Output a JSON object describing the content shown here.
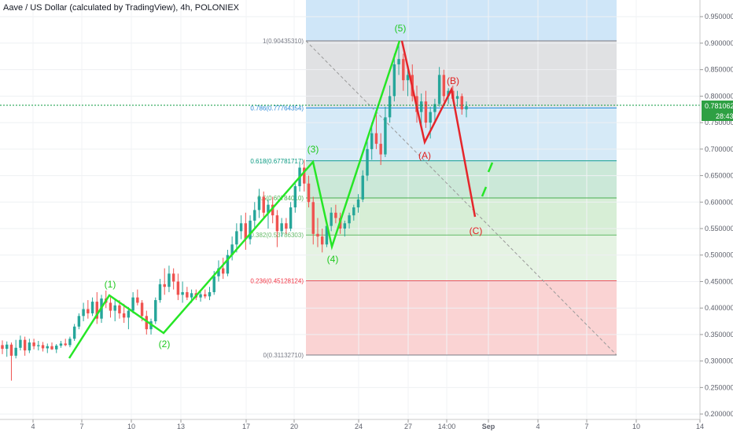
{
  "header": {
    "title": "Aave / US Dollar (calculated by TradingView), 4h, POLONIEX"
  },
  "price_label": {
    "value": "0.78106267",
    "countdown": "28:43"
  },
  "colors": {
    "bull": "#26a69a",
    "bear": "#ef5350",
    "impulse": "#26e626",
    "corrective": "#e5262b",
    "green_box": "#b9e3c4",
    "red_box": "#f8c3c3",
    "blue_box": "#cfe6f8",
    "grey_box": "#e0e1e3"
  },
  "chart_data": {
    "type": "candlestick",
    "title": "Aave / US Dollar (calculated by TradingView), 4h, POLONIEX",
    "x_axis": {
      "labels": [
        "4",
        "7",
        "10",
        "13",
        "17",
        "20",
        "24",
        "27",
        "14:00",
        "Sep",
        "4",
        "7",
        "10",
        "14"
      ]
    },
    "y_axis": {
      "range": [
        0.2,
        0.96
      ],
      "labels": [
        "0.95000000",
        "0.90000000",
        "0.85000000",
        "0.80000000",
        "0.75000000",
        "0.70000000",
        "0.65000000",
        "0.60000000",
        "0.55000000",
        "0.50000000",
        "0.45000000",
        "0.40000000",
        "0.35000000",
        "0.30000000",
        "0.25000000",
        "0.20000000"
      ]
    },
    "current_price": 0.78106267,
    "fibonacci": [
      {
        "ratio": "1",
        "label": "1(0.90435310)",
        "value": 0.9043531
      },
      {
        "ratio": "0.786",
        "label": "0.786(0.77764354)",
        "value": 0.77764354
      },
      {
        "ratio": "0.618",
        "label": "0.618(0.67781717)",
        "value": 0.67781717
      },
      {
        "ratio": "0.5",
        "label": "0.5(0.60784010)",
        "value": 0.6078401
      },
      {
        "ratio": "0.382",
        "label": "0.382(0.53786303)",
        "value": 0.53786303
      },
      {
        "ratio": "0.236",
        "label": "0.236(0.45128124)",
        "value": 0.45128124
      },
      {
        "ratio": "0",
        "label": "0(0.31132710)",
        "value": 0.3113271
      }
    ],
    "waves": [
      {
        "label": "(1)",
        "price": 0.4281,
        "color": "#1ec81e"
      },
      {
        "label": "(2)",
        "price": 0.3527,
        "color": "#1ec81e"
      },
      {
        "label": "(3)",
        "price": 0.6778,
        "color": "#1ec81e"
      },
      {
        "label": "(4)",
        "price": 0.5145,
        "color": "#1ec81e"
      },
      {
        "label": "(5)",
        "price": 0.9044,
        "color": "#1ec81e"
      },
      {
        "label": "(A)",
        "price": 0.7116,
        "color": "#e02020"
      },
      {
        "label": "(B)",
        "price": 0.805,
        "color": "#e02020"
      },
      {
        "label": "(C)",
        "price": 0.574,
        "color": "#e02020"
      }
    ],
    "candles": [
      {
        "o": 0.33,
        "h": 0.339,
        "l": 0.313,
        "c": 0.323
      },
      {
        "o": 0.323,
        "h": 0.337,
        "l": 0.308,
        "c": 0.331
      },
      {
        "o": 0.331,
        "h": 0.335,
        "l": 0.263,
        "c": 0.31
      },
      {
        "o": 0.31,
        "h": 0.34,
        "l": 0.305,
        "c": 0.325
      },
      {
        "o": 0.325,
        "h": 0.348,
        "l": 0.32,
        "c": 0.34
      },
      {
        "o": 0.34,
        "h": 0.346,
        "l": 0.31,
        "c": 0.32
      },
      {
        "o": 0.32,
        "h": 0.342,
        "l": 0.315,
        "c": 0.335
      },
      {
        "o": 0.335,
        "h": 0.342,
        "l": 0.322,
        "c": 0.328
      },
      {
        "o": 0.328,
        "h": 0.338,
        "l": 0.32,
        "c": 0.33
      },
      {
        "o": 0.33,
        "h": 0.336,
        "l": 0.318,
        "c": 0.324
      },
      {
        "o": 0.324,
        "h": 0.333,
        "l": 0.315,
        "c": 0.328
      },
      {
        "o": 0.328,
        "h": 0.335,
        "l": 0.321,
        "c": 0.322
      },
      {
        "o": 0.322,
        "h": 0.332,
        "l": 0.315,
        "c": 0.329
      },
      {
        "o": 0.329,
        "h": 0.338,
        "l": 0.325,
        "c": 0.333
      },
      {
        "o": 0.333,
        "h": 0.342,
        "l": 0.328,
        "c": 0.33
      },
      {
        "o": 0.33,
        "h": 0.346,
        "l": 0.326,
        "c": 0.342
      },
      {
        "o": 0.342,
        "h": 0.37,
        "l": 0.338,
        "c": 0.365
      },
      {
        "o": 0.365,
        "h": 0.39,
        "l": 0.36,
        "c": 0.385
      },
      {
        "o": 0.385,
        "h": 0.41,
        "l": 0.375,
        "c": 0.398
      },
      {
        "o": 0.398,
        "h": 0.415,
        "l": 0.38,
        "c": 0.39
      },
      {
        "o": 0.39,
        "h": 0.42,
        "l": 0.385,
        "c": 0.412
      },
      {
        "o": 0.412,
        "h": 0.43,
        "l": 0.37,
        "c": 0.38
      },
      {
        "o": 0.38,
        "h": 0.425,
        "l": 0.372,
        "c": 0.418
      },
      {
        "o": 0.418,
        "h": 0.433,
        "l": 0.4,
        "c": 0.41
      },
      {
        "o": 0.41,
        "h": 0.422,
        "l": 0.382,
        "c": 0.395
      },
      {
        "o": 0.395,
        "h": 0.415,
        "l": 0.375,
        "c": 0.405
      },
      {
        "o": 0.405,
        "h": 0.415,
        "l": 0.38,
        "c": 0.39
      },
      {
        "o": 0.39,
        "h": 0.408,
        "l": 0.372,
        "c": 0.382
      },
      {
        "o": 0.382,
        "h": 0.402,
        "l": 0.36,
        "c": 0.395
      },
      {
        "o": 0.395,
        "h": 0.43,
        "l": 0.39,
        "c": 0.42
      },
      {
        "o": 0.42,
        "h": 0.435,
        "l": 0.405,
        "c": 0.41
      },
      {
        "o": 0.41,
        "h": 0.415,
        "l": 0.375,
        "c": 0.385
      },
      {
        "o": 0.385,
        "h": 0.395,
        "l": 0.35,
        "c": 0.36
      },
      {
        "o": 0.36,
        "h": 0.38,
        "l": 0.35,
        "c": 0.375
      },
      {
        "o": 0.375,
        "h": 0.42,
        "l": 0.37,
        "c": 0.415
      },
      {
        "o": 0.415,
        "h": 0.455,
        "l": 0.41,
        "c": 0.445
      },
      {
        "o": 0.445,
        "h": 0.475,
        "l": 0.425,
        "c": 0.44
      },
      {
        "o": 0.44,
        "h": 0.48,
        "l": 0.43,
        "c": 0.465
      },
      {
        "o": 0.465,
        "h": 0.475,
        "l": 0.435,
        "c": 0.45
      },
      {
        "o": 0.45,
        "h": 0.465,
        "l": 0.415,
        "c": 0.425
      },
      {
        "o": 0.425,
        "h": 0.45,
        "l": 0.41,
        "c": 0.43
      },
      {
        "o": 0.43,
        "h": 0.44,
        "l": 0.415,
        "c": 0.42
      },
      {
        "o": 0.42,
        "h": 0.435,
        "l": 0.41,
        "c": 0.428
      },
      {
        "o": 0.428,
        "h": 0.435,
        "l": 0.415,
        "c": 0.42
      },
      {
        "o": 0.42,
        "h": 0.432,
        "l": 0.412,
        "c": 0.426
      },
      {
        "o": 0.426,
        "h": 0.435,
        "l": 0.418,
        "c": 0.422
      },
      {
        "o": 0.422,
        "h": 0.44,
        "l": 0.415,
        "c": 0.43
      },
      {
        "o": 0.43,
        "h": 0.47,
        "l": 0.425,
        "c": 0.46
      },
      {
        "o": 0.46,
        "h": 0.49,
        "l": 0.45,
        "c": 0.475
      },
      {
        "o": 0.475,
        "h": 0.495,
        "l": 0.455,
        "c": 0.465
      },
      {
        "o": 0.465,
        "h": 0.51,
        "l": 0.46,
        "c": 0.5
      },
      {
        "o": 0.5,
        "h": 0.535,
        "l": 0.49,
        "c": 0.52
      },
      {
        "o": 0.52,
        "h": 0.56,
        "l": 0.505,
        "c": 0.545
      },
      {
        "o": 0.545,
        "h": 0.575,
        "l": 0.53,
        "c": 0.56
      },
      {
        "o": 0.56,
        "h": 0.58,
        "l": 0.51,
        "c": 0.53
      },
      {
        "o": 0.53,
        "h": 0.575,
        "l": 0.52,
        "c": 0.565
      },
      {
        "o": 0.565,
        "h": 0.6,
        "l": 0.55,
        "c": 0.585
      },
      {
        "o": 0.585,
        "h": 0.625,
        "l": 0.57,
        "c": 0.61
      },
      {
        "o": 0.61,
        "h": 0.62,
        "l": 0.57,
        "c": 0.58
      },
      {
        "o": 0.58,
        "h": 0.605,
        "l": 0.55,
        "c": 0.595
      },
      {
        "o": 0.595,
        "h": 0.61,
        "l": 0.56,
        "c": 0.575
      },
      {
        "o": 0.575,
        "h": 0.585,
        "l": 0.515,
        "c": 0.545
      },
      {
        "o": 0.545,
        "h": 0.57,
        "l": 0.535,
        "c": 0.56
      },
      {
        "o": 0.56,
        "h": 0.57,
        "l": 0.54,
        "c": 0.55
      },
      {
        "o": 0.55,
        "h": 0.6,
        "l": 0.545,
        "c": 0.59
      },
      {
        "o": 0.59,
        "h": 0.64,
        "l": 0.58,
        "c": 0.63
      },
      {
        "o": 0.63,
        "h": 0.675,
        "l": 0.62,
        "c": 0.665
      },
      {
        "o": 0.665,
        "h": 0.68,
        "l": 0.62,
        "c": 0.635
      },
      {
        "o": 0.635,
        "h": 0.65,
        "l": 0.59,
        "c": 0.6
      },
      {
        "o": 0.6,
        "h": 0.61,
        "l": 0.52,
        "c": 0.54
      },
      {
        "o": 0.54,
        "h": 0.57,
        "l": 0.515,
        "c": 0.535
      },
      {
        "o": 0.535,
        "h": 0.55,
        "l": 0.505,
        "c": 0.52
      },
      {
        "o": 0.52,
        "h": 0.565,
        "l": 0.515,
        "c": 0.555
      },
      {
        "o": 0.555,
        "h": 0.59,
        "l": 0.545,
        "c": 0.58
      },
      {
        "o": 0.58,
        "h": 0.595,
        "l": 0.56,
        "c": 0.57
      },
      {
        "o": 0.57,
        "h": 0.58,
        "l": 0.54,
        "c": 0.55
      },
      {
        "o": 0.55,
        "h": 0.565,
        "l": 0.535,
        "c": 0.56
      },
      {
        "o": 0.56,
        "h": 0.58,
        "l": 0.55,
        "c": 0.575
      },
      {
        "o": 0.575,
        "h": 0.595,
        "l": 0.565,
        "c": 0.59
      },
      {
        "o": 0.59,
        "h": 0.615,
        "l": 0.58,
        "c": 0.605
      },
      {
        "o": 0.605,
        "h": 0.66,
        "l": 0.6,
        "c": 0.65
      },
      {
        "o": 0.65,
        "h": 0.72,
        "l": 0.64,
        "c": 0.7
      },
      {
        "o": 0.7,
        "h": 0.75,
        "l": 0.68,
        "c": 0.73
      },
      {
        "o": 0.73,
        "h": 0.77,
        "l": 0.7,
        "c": 0.71
      },
      {
        "o": 0.71,
        "h": 0.73,
        "l": 0.67,
        "c": 0.69
      },
      {
        "o": 0.69,
        "h": 0.78,
        "l": 0.685,
        "c": 0.76
      },
      {
        "o": 0.76,
        "h": 0.82,
        "l": 0.75,
        "c": 0.8
      },
      {
        "o": 0.8,
        "h": 0.88,
        "l": 0.79,
        "c": 0.86
      },
      {
        "o": 0.86,
        "h": 0.905,
        "l": 0.84,
        "c": 0.87
      },
      {
        "o": 0.87,
        "h": 0.88,
        "l": 0.81,
        "c": 0.83
      },
      {
        "o": 0.83,
        "h": 0.85,
        "l": 0.8,
        "c": 0.84
      },
      {
        "o": 0.84,
        "h": 0.86,
        "l": 0.79,
        "c": 0.8
      },
      {
        "o": 0.8,
        "h": 0.82,
        "l": 0.75,
        "c": 0.77
      },
      {
        "o": 0.77,
        "h": 0.805,
        "l": 0.74,
        "c": 0.79
      },
      {
        "o": 0.79,
        "h": 0.81,
        "l": 0.74,
        "c": 0.75
      },
      {
        "o": 0.75,
        "h": 0.78,
        "l": 0.72,
        "c": 0.77
      },
      {
        "o": 0.77,
        "h": 0.795,
        "l": 0.75,
        "c": 0.785
      },
      {
        "o": 0.785,
        "h": 0.855,
        "l": 0.78,
        "c": 0.84
      },
      {
        "o": 0.84,
        "h": 0.85,
        "l": 0.79,
        "c": 0.8
      },
      {
        "o": 0.8,
        "h": 0.815,
        "l": 0.785,
        "c": 0.81
      },
      {
        "o": 0.81,
        "h": 0.82,
        "l": 0.79,
        "c": 0.795
      },
      {
        "o": 0.795,
        "h": 0.81,
        "l": 0.78,
        "c": 0.8
      },
      {
        "o": 0.8,
        "h": 0.805,
        "l": 0.765,
        "c": 0.775
      },
      {
        "o": 0.775,
        "h": 0.79,
        "l": 0.76,
        "c": 0.781
      }
    ]
  }
}
